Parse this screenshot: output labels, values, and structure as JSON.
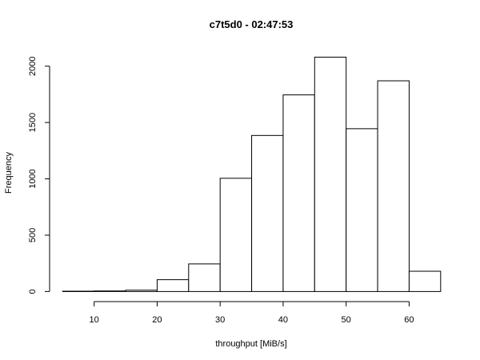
{
  "chart_data": {
    "type": "bar",
    "title": "c7t5d0 - 02:47:53",
    "xlabel": "throughput [MiB/s]",
    "ylabel": "Frequency",
    "bins": [
      {
        "start": 5,
        "end": 10,
        "count": 3
      },
      {
        "start": 10,
        "end": 15,
        "count": 5
      },
      {
        "start": 15,
        "end": 20,
        "count": 12
      },
      {
        "start": 20,
        "end": 25,
        "count": 105
      },
      {
        "start": 25,
        "end": 30,
        "count": 245
      },
      {
        "start": 30,
        "end": 35,
        "count": 1005
      },
      {
        "start": 35,
        "end": 40,
        "count": 1385
      },
      {
        "start": 40,
        "end": 45,
        "count": 1745
      },
      {
        "start": 45,
        "end": 50,
        "count": 2080
      },
      {
        "start": 50,
        "end": 55,
        "count": 1445
      },
      {
        "start": 55,
        "end": 60,
        "count": 1870
      },
      {
        "start": 60,
        "end": 65,
        "count": 180
      }
    ],
    "xlim": [
      5,
      65
    ],
    "ylim": [
      0,
      2080
    ],
    "x_ticks": [
      10,
      20,
      30,
      40,
      50,
      60
    ],
    "y_ticks": [
      0,
      500,
      1000,
      1500,
      2000
    ],
    "x_tick_labels": [
      "10",
      "20",
      "30",
      "40",
      "50",
      "60"
    ],
    "y_tick_labels": [
      "0",
      "500",
      "1000",
      "1500",
      "2000"
    ],
    "grid": false,
    "colors": {
      "bar_fill": "#ffffff",
      "bar_stroke": "#000000",
      "axis": "#000000",
      "background": "#ffffff"
    }
  }
}
